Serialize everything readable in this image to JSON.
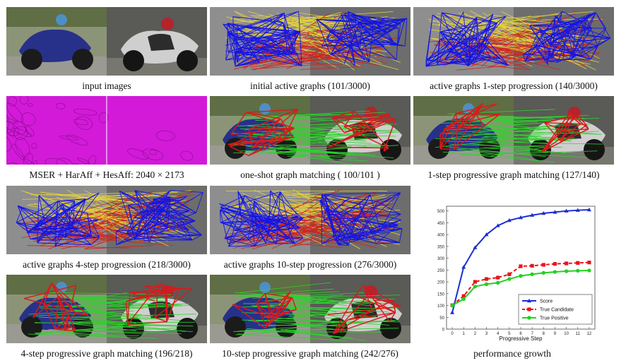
{
  "panels": [
    {
      "caption": "input images",
      "type": "input"
    },
    {
      "caption": "initial active graphs (101/3000)",
      "type": "graph"
    },
    {
      "caption": "active graphs 1-step progression (140/3000)",
      "type": "graph"
    },
    {
      "caption": "MSER + HarAff + HesAff: 2040 × 2173",
      "type": "features"
    },
    {
      "caption": "one-shot graph matching ( 100/101 )",
      "type": "match"
    },
    {
      "caption": "1-step progressive graph matching (127/140)",
      "type": "match"
    },
    {
      "caption": "active graphs 4-step progression (218/3000)",
      "type": "graph"
    },
    {
      "caption": "active graphs 10-step progression (276/3000)",
      "type": "graph"
    },
    {
      "caption": "4-step progressive graph matching (196/218)",
      "type": "match"
    },
    {
      "caption": "10-step progressive graph matching (242/276)",
      "type": "match"
    }
  ],
  "chart_caption": "performance growth",
  "chart_data": {
    "type": "line",
    "title": "",
    "xlabel": "Progressive Step",
    "ylabel": "",
    "xlim": [
      -0.5,
      12.5
    ],
    "ylim": [
      0,
      520
    ],
    "x": [
      0,
      1,
      2,
      3,
      4,
      5,
      6,
      7,
      8,
      9,
      10,
      11,
      12
    ],
    "xticks": [
      0,
      1,
      2,
      3,
      4,
      5,
      6,
      7,
      8,
      9,
      10,
      11,
      12
    ],
    "yticks": [
      0,
      50,
      100,
      150,
      200,
      250,
      300,
      350,
      400,
      450,
      500
    ],
    "legend_position": "bottom-right",
    "series": [
      {
        "name": "Score",
        "color": "#1a2fd0",
        "marker": "triangle",
        "dash": "solid",
        "values": [
          70,
          262,
          345,
          400,
          438,
          460,
          472,
          482,
          490,
          495,
          500,
          503,
          505
        ]
      },
      {
        "name": "True Candidate",
        "color": "#e8141c",
        "marker": "square",
        "dash": "dashed",
        "values": [
          101,
          140,
          200,
          212,
          218,
          232,
          266,
          268,
          272,
          276,
          278,
          280,
          282
        ]
      },
      {
        "name": "True Positive",
        "color": "#22d11f",
        "marker": "circle",
        "dash": "solid",
        "values": [
          100,
          127,
          180,
          190,
          196,
          212,
          225,
          232,
          238,
          242,
          245,
          247,
          248
        ]
      }
    ]
  }
}
